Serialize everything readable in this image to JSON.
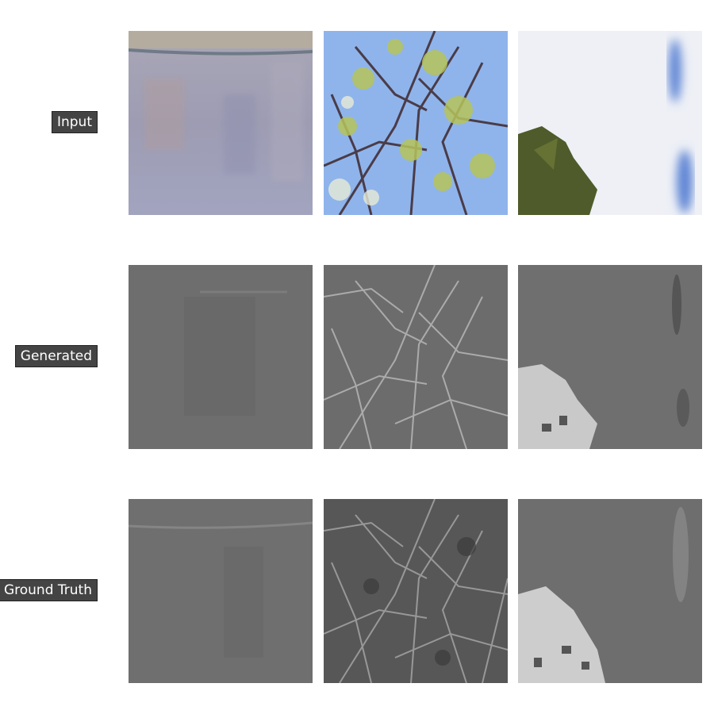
{
  "rows": [
    {
      "label": "Input"
    },
    {
      "label": "Generated"
    },
    {
      "label": "Ground Truth"
    }
  ],
  "colors": {
    "label_bg": "#444444",
    "label_text": "#ffffff",
    "page_bg": "#ffffff"
  }
}
